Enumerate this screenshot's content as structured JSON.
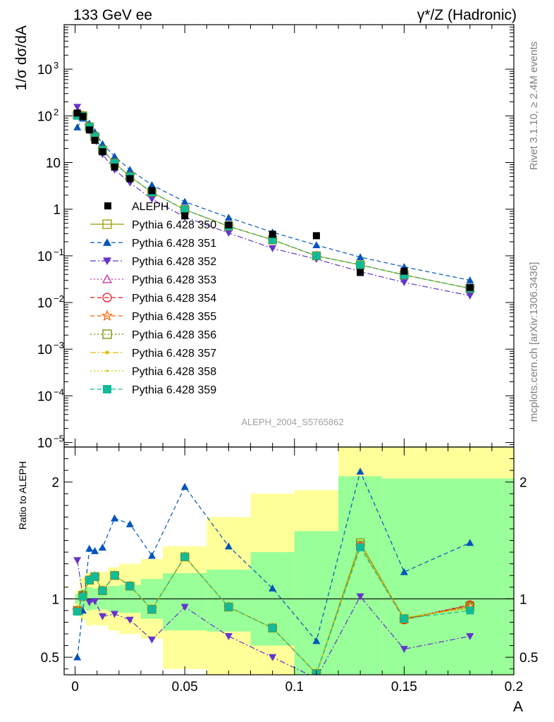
{
  "header": {
    "left": "133 GeV ee",
    "right": "γ*/Z (Hadronic)"
  },
  "side_texts": {
    "top": "Rivet 3.1.10, ≥ 2.4M events",
    "bottom": "mcplots.cern.ch [arXiv:1306.3436]"
  },
  "watermark": "ALEPH_2004_S5765862",
  "chart_data": [
    {
      "panel": "main",
      "type": "scatter",
      "y_scale": "log",
      "ylabel": "1/σ dσ/dA",
      "xlabel": "A",
      "xlim": [
        -0.005,
        0.2
      ],
      "ylim": [
        8e-06,
        9000
      ],
      "y_ticks": [
        {
          "value": 1e-05,
          "base": "10",
          "exp": "−5"
        },
        {
          "value": 0.0001,
          "base": "10",
          "exp": "−4"
        },
        {
          "value": 0.001,
          "base": "10",
          "exp": "−3"
        },
        {
          "value": 0.01,
          "base": "10",
          "exp": "−2"
        },
        {
          "value": 0.1,
          "base": "10",
          "exp": "−1"
        },
        {
          "value": 1,
          "base": "1",
          "exp": ""
        },
        {
          "value": 10,
          "base": "10",
          "exp": ""
        },
        {
          "value": 100,
          "base": "10",
          "exp": "2"
        },
        {
          "value": 1000,
          "base": "10",
          "exp": "3"
        }
      ],
      "x": [
        0.001,
        0.0035,
        0.0065,
        0.009,
        0.0125,
        0.018,
        0.025,
        0.035,
        0.05,
        0.07,
        0.09,
        0.11,
        0.13,
        0.15,
        0.18
      ],
      "data": {
        "name": "ALEPH",
        "values": [
          115,
          97,
          50,
          30,
          17,
          8,
          4.5,
          2.5,
          0.72,
          0.46,
          0.29,
          0.27,
          0.044,
          0.047,
          0.021
        ]
      },
      "series": [
        {
          "name": "Pythia 6.428 350",
          "color": "#999900",
          "marker": "square-open",
          "dash": "",
          "values": [
            105,
            100,
            58,
            36,
            18.5,
            9.8,
            5.0,
            2.3,
            0.98,
            0.43,
            0.22,
            0.1,
            0.064,
            0.039,
            0.02
          ]
        },
        {
          "name": "Pythia 6.428 351",
          "color": "#0055bb",
          "marker": "triangle-up",
          "dash": "6,4",
          "values": [
            57,
            88,
            69,
            45,
            25,
            13.5,
            7.0,
            3.3,
            1.45,
            0.66,
            0.32,
            0.17,
            0.094,
            0.058,
            0.03
          ]
        },
        {
          "name": "Pythia 6.428 352",
          "color": "#6633cc",
          "marker": "triangle-down",
          "dash": "8,3,2,3",
          "values": [
            155,
            100,
            48,
            29,
            15,
            7.0,
            3.7,
            1.65,
            0.68,
            0.31,
            0.145,
            0.085,
            0.046,
            0.027,
            0.014
          ]
        },
        {
          "name": "Pythia 6.428 353",
          "color": "#cc33aa",
          "marker": "triangle-open",
          "dash": "2,3",
          "values": [
            104,
            100,
            58,
            36,
            18.5,
            9.7,
            5.0,
            2.3,
            0.98,
            0.43,
            0.22,
            0.1,
            0.064,
            0.039,
            0.02
          ]
        },
        {
          "name": "Pythia 6.428 354",
          "color": "#ee1122",
          "marker": "circle-open",
          "dash": "6,4",
          "values": [
            104,
            100,
            58,
            36,
            18.5,
            9.7,
            5.0,
            2.3,
            0.98,
            0.43,
            0.22,
            0.1,
            0.064,
            0.039,
            0.02
          ]
        },
        {
          "name": "Pythia 6.428 355",
          "color": "#ff6600",
          "marker": "star-open",
          "dash": "6,4",
          "values": [
            104,
            100,
            58,
            36,
            18.5,
            9.7,
            5.0,
            2.3,
            0.98,
            0.43,
            0.22,
            0.1,
            0.064,
            0.039,
            0.02
          ]
        },
        {
          "name": "Pythia 6.428 356",
          "color": "#778800",
          "marker": "square-open",
          "dash": "2,3",
          "values": [
            104,
            100,
            58,
            36,
            18.5,
            9.7,
            5.0,
            2.3,
            0.98,
            0.43,
            0.22,
            0.1,
            0.064,
            0.039,
            0.02
          ]
        },
        {
          "name": "Pythia 6.428 357",
          "color": "#ddbb00",
          "marker": "dot",
          "dash": "8,3,2,3",
          "values": [
            104,
            100,
            58,
            36,
            18.5,
            9.7,
            5.0,
            2.3,
            0.98,
            0.43,
            0.22,
            0.1,
            0.064,
            0.039,
            0.02
          ]
        },
        {
          "name": "Pythia 6.428 358",
          "color": "#cccc00",
          "marker": "dot-small",
          "dash": "2,3",
          "values": [
            104,
            100,
            58,
            36,
            18.5,
            9.7,
            5.0,
            2.3,
            0.98,
            0.43,
            0.22,
            0.1,
            0.064,
            0.039,
            0.02
          ]
        },
        {
          "name": "Pythia 6.428 359",
          "color": "#11bb99",
          "marker": "square-filled",
          "dash": "6,4",
          "values": [
            100,
            99,
            58,
            36,
            18.5,
            9.7,
            5.0,
            2.3,
            0.98,
            0.43,
            0.22,
            0.1,
            0.064,
            0.039,
            0.02
          ]
        }
      ]
    },
    {
      "panel": "ratio",
      "type": "line",
      "ylabel": "Ratio to ALEPH",
      "xlabel": "A",
      "xlim": [
        -0.005,
        0.2
      ],
      "ylim": [
        0.35,
        2.3
      ],
      "y_ticks": [
        0.5,
        1,
        2
      ],
      "x_ticks": [
        0,
        0.05,
        0.1,
        0.15,
        0.2
      ],
      "x_tick_labels": [
        "0",
        "0.05",
        "0.1",
        "0.15",
        "0.2"
      ],
      "bands": [
        {
          "x0": 0.0,
          "x1": 0.002,
          "outer": [
            0.93,
            1.07
          ],
          "inner": [
            0.96,
            1.04
          ]
        },
        {
          "x0": 0.002,
          "x1": 0.005,
          "outer": [
            0.82,
            1.18
          ],
          "inner": [
            0.92,
            1.08
          ]
        },
        {
          "x0": 0.005,
          "x1": 0.008,
          "outer": [
            0.77,
            1.23
          ],
          "inner": [
            0.9,
            1.1
          ]
        },
        {
          "x0": 0.008,
          "x1": 0.01,
          "outer": [
            0.78,
            1.22
          ],
          "inner": [
            0.91,
            1.09
          ]
        },
        {
          "x0": 0.01,
          "x1": 0.015,
          "outer": [
            0.77,
            1.23
          ],
          "inner": [
            0.91,
            1.09
          ]
        },
        {
          "x0": 0.015,
          "x1": 0.02,
          "outer": [
            0.73,
            1.27
          ],
          "inner": [
            0.89,
            1.11
          ]
        },
        {
          "x0": 0.02,
          "x1": 0.03,
          "outer": [
            0.7,
            1.3
          ],
          "inner": [
            0.88,
            1.12
          ]
        },
        {
          "x0": 0.03,
          "x1": 0.04,
          "outer": [
            0.66,
            1.34
          ],
          "inner": [
            0.83,
            1.17
          ]
        },
        {
          "x0": 0.04,
          "x1": 0.06,
          "outer": [
            0.4,
            1.45
          ],
          "inner": [
            0.73,
            1.22
          ]
        },
        {
          "x0": 0.06,
          "x1": 0.08,
          "outer": [
            0.35,
            1.7
          ],
          "inner": [
            0.72,
            1.25
          ]
        },
        {
          "x0": 0.08,
          "x1": 0.1,
          "outer": [
            0.35,
            1.9
          ],
          "inner": [
            0.6,
            1.4
          ]
        },
        {
          "x0": 0.1,
          "x1": 0.12,
          "outer": [
            0.35,
            1.93
          ],
          "inner": [
            0.35,
            1.58
          ]
        },
        {
          "x0": 0.12,
          "x1": 0.14,
          "outer": [
            0.35,
            2.3
          ],
          "inner": [
            0.35,
            2.05
          ]
        },
        {
          "x0": 0.14,
          "x1": 0.16,
          "outer": [
            0.35,
            2.3
          ],
          "inner": [
            0.35,
            2.03
          ]
        },
        {
          "x0": 0.16,
          "x1": 0.2,
          "outer": [
            0.35,
            2.3
          ],
          "inner": [
            0.35,
            2.03
          ]
        }
      ],
      "band_colors": {
        "outer": "#ffff99",
        "inner": "#99ff99"
      },
      "x": [
        0.001,
        0.0035,
        0.0065,
        0.009,
        0.0125,
        0.018,
        0.025,
        0.035,
        0.05,
        0.07,
        0.09,
        0.11,
        0.13,
        0.15,
        0.18
      ],
      "series": [
        {
          "name": "Pythia 6.428 350",
          "values": [
            0.9,
            1.02,
            1.16,
            1.19,
            1.07,
            1.2,
            1.11,
            0.91,
            1.36,
            0.93,
            0.75,
            0.36,
            1.48,
            0.83,
            0.94
          ]
        },
        {
          "name": "Pythia 6.428 351",
          "values": [
            0.5,
            0.9,
            1.43,
            1.41,
            1.44,
            1.69,
            1.64,
            1.37,
            1.96,
            1.45,
            1.09,
            0.64,
            2.09,
            1.23,
            1.48
          ]
        },
        {
          "name": "Pythia 6.428 352",
          "values": [
            1.33,
            1.03,
            0.97,
            0.98,
            0.85,
            0.87,
            0.82,
            0.65,
            0.93,
            0.68,
            0.5,
            0.32,
            1.02,
            0.57,
            0.68
          ]
        },
        {
          "name": "Pythia 6.428 353",
          "values": [
            0.9,
            1.03,
            1.16,
            1.19,
            1.07,
            1.2,
            1.11,
            0.91,
            1.36,
            0.93,
            0.75,
            0.36,
            1.45,
            0.83,
            0.95
          ]
        },
        {
          "name": "Pythia 6.428 354",
          "values": [
            0.9,
            1.03,
            1.16,
            1.19,
            1.07,
            1.2,
            1.11,
            0.91,
            1.36,
            0.93,
            0.75,
            0.36,
            1.45,
            0.82,
            0.95
          ]
        },
        {
          "name": "Pythia 6.428 355",
          "values": [
            0.9,
            1.03,
            1.16,
            1.19,
            1.07,
            1.2,
            1.11,
            0.91,
            1.36,
            0.93,
            0.75,
            0.36,
            1.45,
            0.82,
            0.94
          ]
        },
        {
          "name": "Pythia 6.428 356",
          "values": [
            0.9,
            1.03,
            1.16,
            1.19,
            1.07,
            1.2,
            1.11,
            0.91,
            1.36,
            0.93,
            0.75,
            0.36,
            1.46,
            0.83,
            0.93
          ]
        },
        {
          "name": "Pythia 6.428 357",
          "values": [
            0.9,
            1.03,
            1.16,
            1.19,
            1.07,
            1.2,
            1.11,
            0.91,
            1.36,
            0.93,
            0.75,
            0.36,
            1.45,
            0.84,
            0.92
          ]
        },
        {
          "name": "Pythia 6.428 358",
          "values": [
            0.9,
            1.03,
            1.16,
            1.19,
            1.07,
            1.2,
            1.11,
            0.91,
            1.36,
            0.93,
            0.75,
            0.36,
            1.45,
            0.84,
            0.92
          ]
        },
        {
          "name": "Pythia 6.428 359",
          "values": [
            0.89,
            1.02,
            1.16,
            1.19,
            1.07,
            1.2,
            1.11,
            0.91,
            1.36,
            0.93,
            0.75,
            0.36,
            1.44,
            0.83,
            0.9
          ]
        }
      ]
    }
  ]
}
